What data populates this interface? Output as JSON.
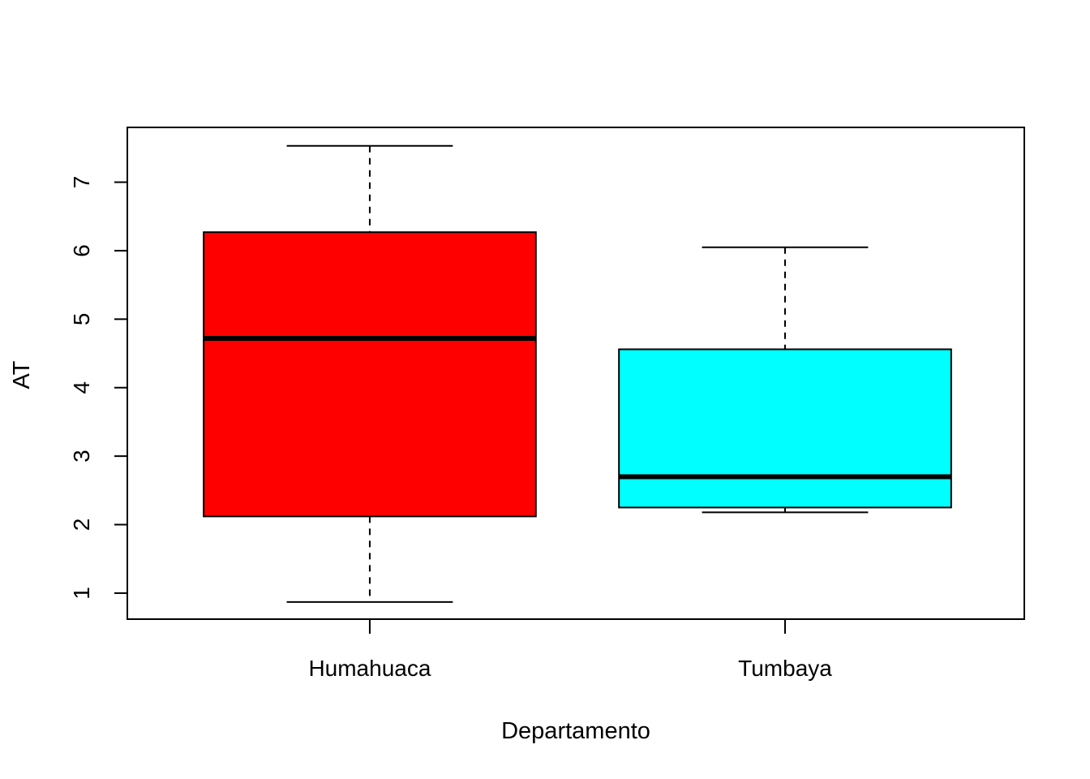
{
  "chart_data": {
    "type": "boxplot",
    "title": "",
    "xlabel": "Departamento",
    "ylabel": "AT",
    "ylim": [
      0.62,
      7.8
    ],
    "yticks": [
      "1",
      "2",
      "3",
      "4",
      "5",
      "6",
      "7"
    ],
    "grid": false,
    "legend": "none",
    "categories": [
      "Humahuaca",
      "Tumbaya"
    ],
    "boxes": [
      {
        "category": "Humahuaca",
        "whisker_low": 0.87,
        "q1": 2.12,
        "median": 4.72,
        "q3": 6.27,
        "whisker_high": 7.53,
        "fill": "#ff0000"
      },
      {
        "category": "Tumbaya",
        "whisker_low": 2.18,
        "q1": 2.25,
        "median": 2.7,
        "q3": 4.56,
        "whisker_high": 6.05,
        "fill": "#00ffff"
      }
    ]
  }
}
